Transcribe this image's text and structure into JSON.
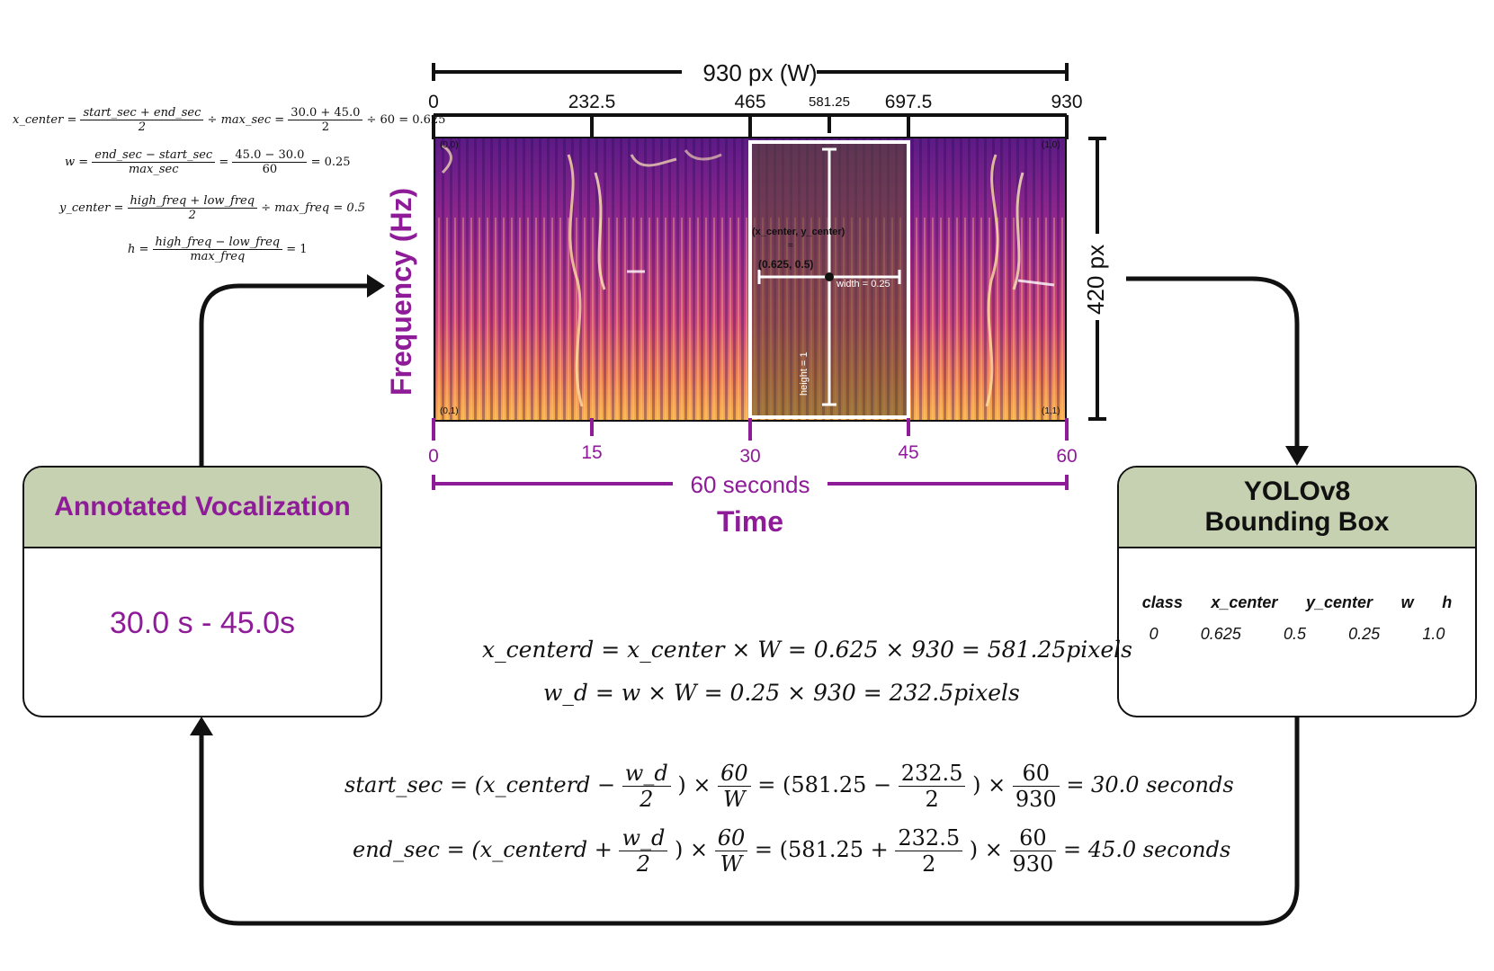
{
  "width_axis": {
    "title": "930 px (W)",
    "ticks": [
      "0",
      "232.5",
      "465",
      "581.25",
      "697.5",
      "930"
    ]
  },
  "height_axis": {
    "title": "420 px"
  },
  "time_axis": {
    "ticks": [
      "0",
      "15",
      "30",
      "45",
      "60"
    ],
    "span_label": "60 seconds",
    "title": "Time"
  },
  "freq_axis": {
    "title": "Frequency (Hz)"
  },
  "spectrogram": {
    "corners": {
      "tl": "(0,0)",
      "tr": "(1,0)",
      "bl": "(0,1)",
      "br": "(1,1)"
    },
    "box": {
      "center_label": "(x_center, y_center)",
      "equals": "=",
      "center_value": "(0.625, 0.5)",
      "width_label": "width = 0.25",
      "height_label": "height = 1"
    }
  },
  "left_formulas": {
    "xcenter": {
      "lhs": "x_center =",
      "n1": "start_sec + end_sec",
      "d1": "2",
      "mid": "÷ max_sec =",
      "n2": "30.0 + 45.0",
      "d2": "2",
      "tail": "÷ 60 = 0.625"
    },
    "w": {
      "lhs": "w =",
      "n1": "end_sec − start_sec",
      "d1": "max_sec",
      "eq": "=",
      "n2": "45.0 − 30.0",
      "d2": "60",
      "tail": "= 0.25"
    },
    "ycenter": {
      "lhs": "y_center =",
      "n1": "high_freq + low_freq",
      "d1": "2",
      "tail": "÷ max_freq = 0.5"
    },
    "h": {
      "lhs": "h =",
      "n1": "high_freq − low_freq",
      "d1": "max_freq",
      "tail": "= 1"
    }
  },
  "annotated_box": {
    "title": "Annotated Vocalization",
    "value": "30.0 s - 45.0s"
  },
  "yolo_box": {
    "title_line1": "YOLOv8",
    "title_line2": "Bounding Box",
    "headers": [
      "class",
      "x_center",
      "y_center",
      "w",
      "h"
    ],
    "values": [
      "0",
      "0.625",
      "0.5",
      "0.25",
      "1.0"
    ]
  },
  "center_formulas": {
    "line1": "x_centerd = x_center × W = 0.625 × 930 = 581.25pixels",
    "line2": "w_d = w × W = 0.25 × 930 = 232.5pixels"
  },
  "bottom_formulas": {
    "start": {
      "lhs": "start_sec =",
      "a": "(x_centerd −",
      "n1": "w_d",
      "d1": "2",
      "b": ") ×",
      "n2": "60",
      "d2": "W",
      "c": "= (581.25 −",
      "n3": "232.5",
      "d3": "2",
      "d": ") ×",
      "n4": "60",
      "d4": "930",
      "tail": "= 30.0 seconds"
    },
    "end": {
      "lhs": "end_sec =",
      "a": "(x_centerd +",
      "n1": "w_d",
      "d1": "2",
      "b": ") ×",
      "n2": "60",
      "d2": "W",
      "c": "= (581.25 +",
      "n3": "232.5",
      "d3": "2",
      "d": ") ×",
      "n4": "60",
      "d4": "930",
      "tail": "= 45.0 seconds"
    }
  },
  "colors": {
    "purple": "#8e1b97",
    "header_green": "#c5d1b0",
    "spectrogram_dark": "#3a0a6e",
    "spectrogram_mid": "#c2378a",
    "spectrogram_bright": "#f7a24a"
  }
}
